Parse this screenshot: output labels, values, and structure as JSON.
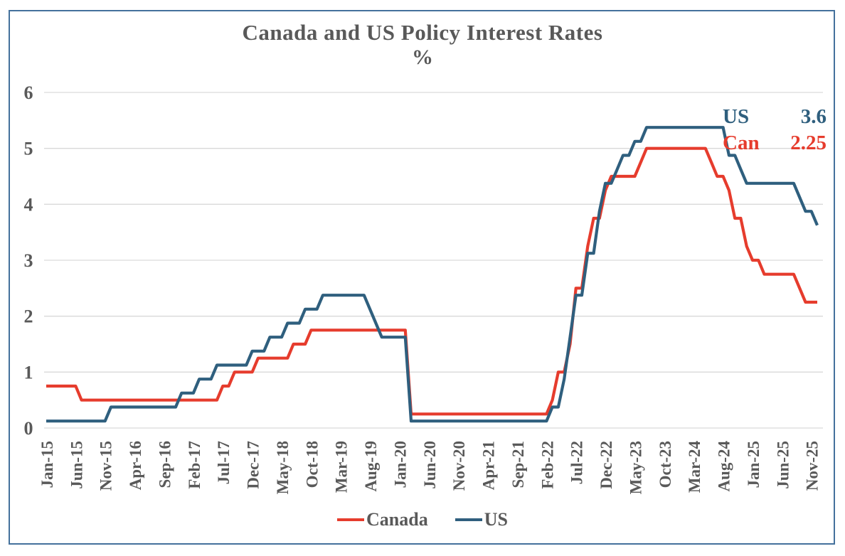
{
  "title": "Canada and US Policy Interest Rates",
  "subtitle": "%",
  "annotation": {
    "us_label": "US",
    "us_value": "3.6",
    "us_color": "#2f5f7e",
    "can_label": "Can",
    "can_value": "2.25",
    "can_color": "#e63c2d"
  },
  "colors": {
    "text_gray": "#595959",
    "gridline": "#d9d9d9",
    "frame_border": "#44719c",
    "canada_red": "#e63c2d",
    "us_blue": "#2f5f7e"
  },
  "chart_data": {
    "type": "line",
    "x_monthly_start": "Jan-2015",
    "x_monthly_end": "Dec-2025",
    "x_tick_every_months": 5,
    "x_tick_labels": [
      "Jan-15",
      "Jun-15",
      "Nov-15",
      "Apr-16",
      "Sep-16",
      "Feb-17",
      "Jul-17",
      "Dec-17",
      "May-18",
      "Oct-18",
      "Mar-19",
      "Aug-19",
      "Jan-20",
      "Jun-20",
      "Nov-20",
      "Apr-21",
      "Sep-21",
      "Feb-22",
      "Jul-22",
      "Dec-22",
      "May-23",
      "Oct-23",
      "Mar-24",
      "Aug-24",
      "Jan-25",
      "Jun-25",
      "Nov-25"
    ],
    "ylim": [
      0,
      6
    ],
    "y_ticks": [
      0,
      1,
      2,
      3,
      4,
      5,
      6
    ],
    "grid": "horizontal",
    "legend_position": "bottom",
    "series": [
      {
        "name": "Canada",
        "color": "#e63c2d",
        "values": [
          0.75,
          0.75,
          0.75,
          0.75,
          0.75,
          0.75,
          0.5,
          0.5,
          0.5,
          0.5,
          0.5,
          0.5,
          0.5,
          0.5,
          0.5,
          0.5,
          0.5,
          0.5,
          0.5,
          0.5,
          0.5,
          0.5,
          0.5,
          0.5,
          0.5,
          0.5,
          0.5,
          0.5,
          0.5,
          0.5,
          0.75,
          0.75,
          1,
          1,
          1,
          1,
          1.25,
          1.25,
          1.25,
          1.25,
          1.25,
          1.25,
          1.5,
          1.5,
          1.5,
          1.75,
          1.75,
          1.75,
          1.75,
          1.75,
          1.75,
          1.75,
          1.75,
          1.75,
          1.75,
          1.75,
          1.75,
          1.75,
          1.75,
          1.75,
          1.75,
          1.75,
          0.25,
          0.25,
          0.25,
          0.25,
          0.25,
          0.25,
          0.25,
          0.25,
          0.25,
          0.25,
          0.25,
          0.25,
          0.25,
          0.25,
          0.25,
          0.25,
          0.25,
          0.25,
          0.25,
          0.25,
          0.25,
          0.25,
          0.25,
          0.25,
          0.5,
          1,
          1,
          1.5,
          2.5,
          2.5,
          3.25,
          3.75,
          3.75,
          4.25,
          4.5,
          4.5,
          4.5,
          4.5,
          4.5,
          4.75,
          5,
          5,
          5,
          5,
          5,
          5,
          5,
          5,
          5,
          5,
          5,
          4.75,
          4.5,
          4.5,
          4.25,
          3.75,
          3.75,
          3.25,
          3,
          3,
          2.75,
          2.75,
          2.75,
          2.75,
          2.75,
          2.75,
          2.5,
          2.25,
          2.25,
          2.25
        ]
      },
      {
        "name": "US",
        "color": "#2f5f7e",
        "values": [
          0.125,
          0.125,
          0.125,
          0.125,
          0.125,
          0.125,
          0.125,
          0.125,
          0.125,
          0.125,
          0.125,
          0.375,
          0.375,
          0.375,
          0.375,
          0.375,
          0.375,
          0.375,
          0.375,
          0.375,
          0.375,
          0.375,
          0.375,
          0.625,
          0.625,
          0.625,
          0.875,
          0.875,
          0.875,
          1.125,
          1.125,
          1.125,
          1.125,
          1.125,
          1.125,
          1.375,
          1.375,
          1.375,
          1.625,
          1.625,
          1.625,
          1.875,
          1.875,
          1.875,
          2.125,
          2.125,
          2.125,
          2.375,
          2.375,
          2.375,
          2.375,
          2.375,
          2.375,
          2.375,
          2.375,
          2.125,
          1.875,
          1.625,
          1.625,
          1.625,
          1.625,
          1.625,
          0.125,
          0.125,
          0.125,
          0.125,
          0.125,
          0.125,
          0.125,
          0.125,
          0.125,
          0.125,
          0.125,
          0.125,
          0.125,
          0.125,
          0.125,
          0.125,
          0.125,
          0.125,
          0.125,
          0.125,
          0.125,
          0.125,
          0.125,
          0.125,
          0.375,
          0.375,
          0.875,
          1.625,
          2.375,
          2.375,
          3.125,
          3.125,
          3.875,
          4.375,
          4.375,
          4.625,
          4.875,
          4.875,
          5.125,
          5.125,
          5.375,
          5.375,
          5.375,
          5.375,
          5.375,
          5.375,
          5.375,
          5.375,
          5.375,
          5.375,
          5.375,
          5.375,
          5.375,
          5.375,
          4.875,
          4.875,
          4.625,
          4.375,
          4.375,
          4.375,
          4.375,
          4.375,
          4.375,
          4.375,
          4.375,
          4.375,
          4.125,
          3.875,
          3.875,
          3.625
        ]
      }
    ]
  }
}
